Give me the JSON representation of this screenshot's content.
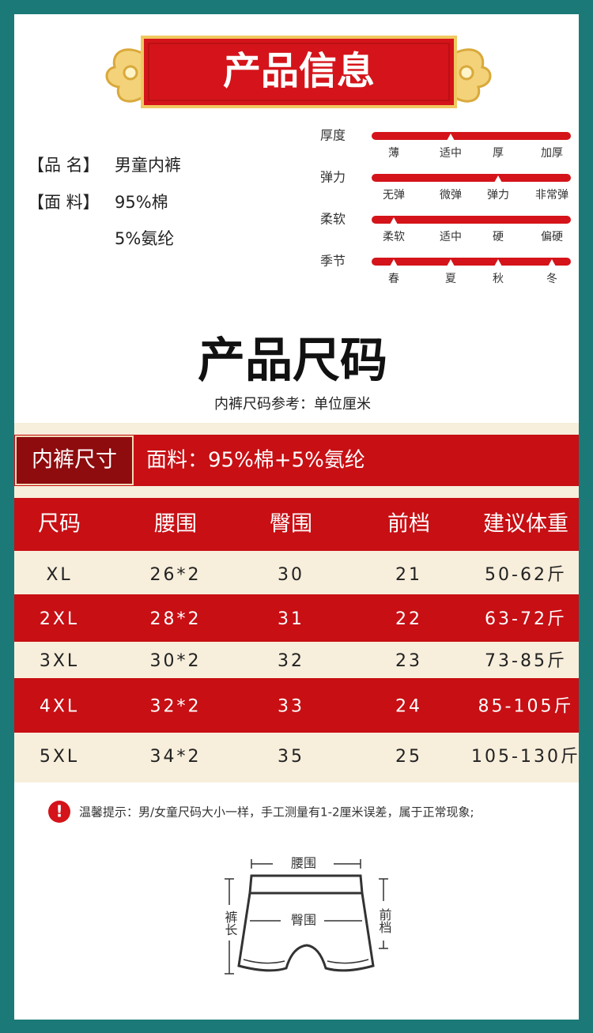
{
  "header": {
    "title": "产品信息"
  },
  "info": {
    "name": {
      "label": "【品 名】",
      "value": "男童内裤"
    },
    "fabric": {
      "label": "【面 料】",
      "lines": [
        "95%棉",
        "5%氨纶"
      ]
    }
  },
  "attributes": [
    {
      "name": "厚度",
      "options": [
        "薄",
        "适中",
        "厚",
        "加厚"
      ],
      "selected": [
        1
      ]
    },
    {
      "name": "弹力",
      "options": [
        "无弹",
        "微弹",
        "弹力",
        "非常弹"
      ],
      "selected": [
        2
      ]
    },
    {
      "name": "柔软",
      "options": [
        "柔软",
        "适中",
        "硬",
        "偏硬"
      ],
      "selected": [
        0
      ]
    },
    {
      "name": "季节",
      "options": [
        "春",
        "夏",
        "秋",
        "冬"
      ],
      "selected": [
        0,
        1,
        2,
        3
      ]
    }
  ],
  "size_section": {
    "title": "产品尺码",
    "subtitle": "内裤尺码参考：单位厘米"
  },
  "table": {
    "label": "内裤尺寸",
    "fabric": "面料：95%棉+5%氨纶",
    "header": [
      "尺码",
      "腰围",
      "臀围",
      "前档",
      "建议体重"
    ],
    "rows": [
      [
        "XL",
        "26*2",
        "30",
        "21",
        "50-62斤"
      ],
      [
        "2XL",
        "28*2",
        "31",
        "22",
        "63-72斤"
      ],
      [
        "3XL",
        "30*2",
        "32",
        "23",
        "73-85斤"
      ],
      [
        "4XL",
        "32*2",
        "33",
        "24",
        "85-105斤"
      ],
      [
        "5XL",
        "34*2",
        "35",
        "25",
        "105-130斤"
      ]
    ]
  },
  "notice": "温馨提示：男/女童尺码大小一样，手工测量有1-2厘米误差，属于正常现象;",
  "diagram": {
    "waist": "腰围",
    "hip": "臀围",
    "rise": "前档",
    "length": "裤长"
  }
}
